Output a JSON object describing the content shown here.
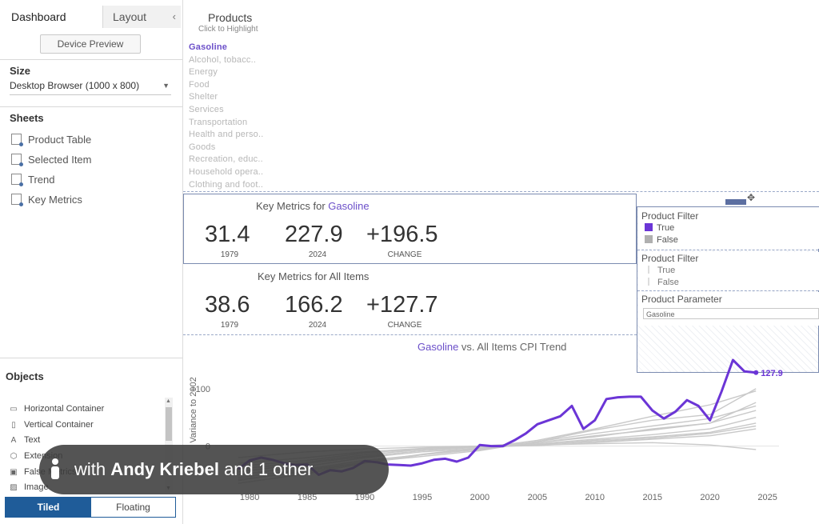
{
  "left_panel": {
    "tabs": [
      "Dashboard",
      "Layout"
    ],
    "collapse_glyph": "‹",
    "device_preview_label": "Device Preview",
    "size_heading": "Size",
    "size_value": "Desktop Browser (1000 x 800)",
    "sheets_heading": "Sheets",
    "sheets": [
      "Product Table",
      "Selected Item",
      "Trend",
      "Key Metrics"
    ],
    "objects_heading": "Objects",
    "objects": [
      {
        "label": "Horizontal Container",
        "icon": "horizontal-container-icon",
        "glyph": "▭"
      },
      {
        "label": "Vertical Container",
        "icon": "vertical-container-icon",
        "glyph": "▯"
      },
      {
        "label": "Text",
        "icon": "text-icon",
        "glyph": "A"
      },
      {
        "label": "Extension",
        "icon": "extension-icon",
        "glyph": "⬡"
      },
      {
        "label": "False Metrics",
        "icon": "metrics-icon",
        "glyph": "▣"
      },
      {
        "label": "Image",
        "icon": "image-icon",
        "glyph": "▨"
      }
    ],
    "mode_tiled": "Tiled",
    "mode_floating": "Floating"
  },
  "products": {
    "title": "Products",
    "subtitle": "Click to Highlight",
    "items": [
      "Gasoline",
      "Alcohol, tobacc..",
      "Energy",
      "Food",
      "Shelter",
      "Services",
      "Transportation",
      "Health and perso..",
      "Goods",
      "Recreation, educ..",
      "Household opera..",
      "Clothing and foot.."
    ],
    "selected_index": 0
  },
  "key_metrics_selected": {
    "title_prefix": "Key Metrics for ",
    "title_item": "Gasoline",
    "values": [
      "31.4",
      "227.9",
      "+196.5"
    ],
    "labels": [
      "1979",
      "2024",
      "CHANGE"
    ]
  },
  "key_metrics_all": {
    "title": "Key Metrics for All Items",
    "values": [
      "38.6",
      "166.2",
      "+127.7"
    ],
    "labels": [
      "1979",
      "2024",
      "CHANGE"
    ]
  },
  "legend": {
    "filter1_title": "Product Filter",
    "filter1_items": [
      {
        "label": "True",
        "color": "#6b35d6"
      },
      {
        "label": "False",
        "color": "#b0b0b0"
      }
    ],
    "filter2_title": "Product Filter",
    "filter2_items": [
      "True",
      "False"
    ],
    "parameter_title": "Product Parameter",
    "parameter_value": "Gasoline"
  },
  "trend": {
    "title_item": "Gasoline",
    "title_rest": " vs. All Items CPI Trend"
  },
  "chart_data": {
    "type": "line",
    "ylabel": "Variance to 2002",
    "ytick_labels": [
      "+100",
      "0"
    ],
    "ytick_values": [
      100,
      0
    ],
    "xtick_labels": [
      "1980",
      "1985",
      "1990",
      "1995",
      "2000",
      "2005",
      "2010",
      "2015",
      "2020",
      "2025"
    ],
    "xtick_values": [
      1980,
      1985,
      1990,
      1995,
      2000,
      2005,
      2010,
      2015,
      2020,
      2025
    ],
    "xlim": [
      1977,
      2026
    ],
    "ylim": [
      -80,
      150
    ],
    "highlight": {
      "name": "Gasoline",
      "color": "#6b35d6",
      "end_label": "127.9",
      "x": [
        1979,
        1980,
        1981,
        1982,
        1983,
        1984,
        1985,
        1986,
        1987,
        1988,
        1989,
        1990,
        1991,
        1992,
        1993,
        1994,
        1995,
        1996,
        1997,
        1998,
        1999,
        2000,
        2001,
        2002,
        2003,
        2004,
        2005,
        2006,
        2007,
        2008,
        2009,
        2010,
        2011,
        2012,
        2013,
        2014,
        2015,
        2016,
        2017,
        2018,
        2019,
        2020,
        2021,
        2022,
        2023,
        2024
      ],
      "y": [
        -40,
        -25,
        -20,
        -24,
        -30,
        -33,
        -32,
        -50,
        -42,
        -44,
        -38,
        -26,
        -28,
        -32,
        -33,
        -34,
        -30,
        -24,
        -22,
        -27,
        -20,
        2,
        0,
        0,
        10,
        22,
        38,
        45,
        52,
        70,
        30,
        45,
        82,
        85,
        86,
        86,
        62,
        48,
        60,
        80,
        70,
        45,
        95,
        150,
        130,
        128
      ]
    },
    "others": [
      {
        "x": [
          1979,
          1985,
          1990,
          1995,
          2000,
          2005,
          2010,
          2015,
          2020,
          2024
        ],
        "y": [
          -60,
          -42,
          -28,
          -18,
          -8,
          8,
          22,
          35,
          48,
          70
        ]
      },
      {
        "x": [
          1979,
          1985,
          1990,
          1995,
          2000,
          2005,
          2010,
          2015,
          2020,
          2024
        ],
        "y": [
          -55,
          -40,
          -25,
          -15,
          -6,
          6,
          18,
          28,
          40,
          62
        ]
      },
      {
        "x": [
          1979,
          1985,
          1990,
          1995,
          2000,
          2005,
          2010,
          2015,
          2020,
          2024
        ],
        "y": [
          -50,
          -35,
          -20,
          -10,
          -4,
          4,
          12,
          20,
          30,
          50
        ]
      },
      {
        "x": [
          1979,
          1985,
          1990,
          1995,
          2000,
          2005,
          2010,
          2015,
          2020,
          2024
        ],
        "y": [
          -45,
          -30,
          -18,
          -8,
          -2,
          2,
          10,
          16,
          24,
          40
        ]
      },
      {
        "x": [
          1979,
          1985,
          1990,
          1995,
          2000,
          2005,
          2010,
          2015,
          2020,
          2024
        ],
        "y": [
          -40,
          -28,
          -15,
          -6,
          -1,
          1,
          6,
          12,
          18,
          30
        ]
      },
      {
        "x": [
          1979,
          1985,
          1990,
          1995,
          2000,
          2005,
          2010,
          2015,
          2020,
          2024
        ],
        "y": [
          -30,
          -20,
          -10,
          -4,
          0,
          3,
          8,
          14,
          22,
          35
        ]
      },
      {
        "x": [
          1979,
          1985,
          1990,
          1995,
          2000,
          2005,
          2010,
          2015,
          2020,
          2024
        ],
        "y": [
          -20,
          -10,
          -5,
          -2,
          0,
          2,
          4,
          6,
          2,
          -6
        ]
      },
      {
        "x": [
          1979,
          1985,
          1990,
          1995,
          2000,
          2005,
          2010,
          2015,
          2020,
          2024
        ],
        "y": [
          -35,
          -25,
          -12,
          -5,
          0,
          6,
          16,
          30,
          40,
          76
        ]
      },
      {
        "x": [
          1979,
          1985,
          1990,
          1995,
          2000,
          2005,
          2010,
          2015,
          2020,
          2024
        ],
        "y": [
          -65,
          -48,
          -30,
          -15,
          -5,
          8,
          28,
          45,
          55,
          100
        ]
      },
      {
        "x": [
          1979,
          1985,
          1990,
          1995,
          2000,
          2005,
          2010,
          2015,
          2020,
          2024
        ],
        "y": [
          -58,
          -45,
          -28,
          -14,
          -3,
          10,
          30,
          52,
          72,
          96
        ]
      }
    ]
  },
  "overlay": {
    "prefix": "with ",
    "name": "Andy Kriebel",
    "suffix": " and 1 other"
  }
}
